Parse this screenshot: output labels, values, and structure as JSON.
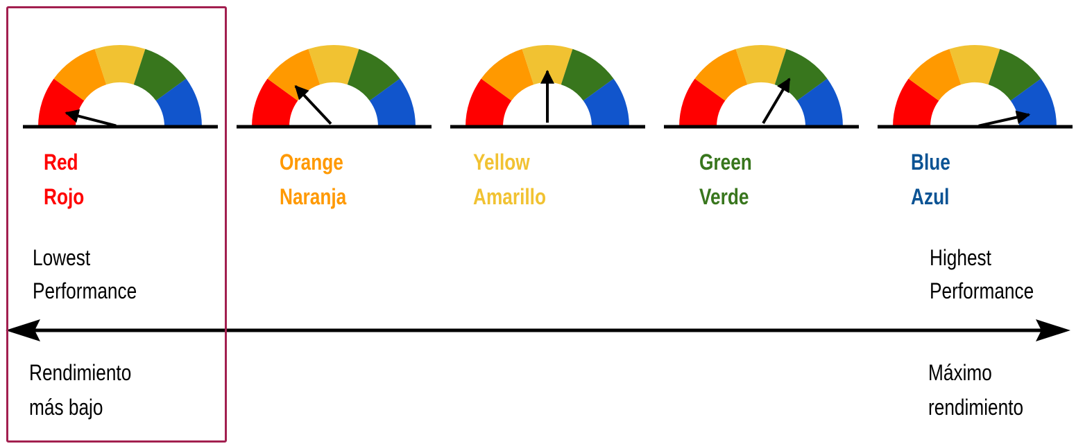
{
  "gauges": [
    {
      "name_en": "Red",
      "name_es": "Rojo",
      "color": "#ff0000",
      "needle_fraction": 0.08
    },
    {
      "name_en": "Orange",
      "name_es": "Naranja",
      "color": "#ff9900",
      "needle_fraction": 0.26
    },
    {
      "name_en": "Yellow",
      "name_es": "Amarillo",
      "color": "#f1c232",
      "needle_fraction": 0.5
    },
    {
      "name_en": "Green",
      "name_es": "Verde",
      "color": "#38761d",
      "needle_fraction": 0.67
    },
    {
      "name_en": "Blue",
      "name_es": "Azul",
      "color": "#0b5394",
      "needle_fraction": 0.93
    }
  ],
  "dial_segment_colors": [
    "#ff0000",
    "#ff9900",
    "#f1c232",
    "#38761d",
    "#1155cc"
  ],
  "scale": {
    "low": {
      "en": "Lowest Performance",
      "en_line1": "Lowest",
      "en_line2": "Performance",
      "es_line1": "Rendimiento",
      "es_line2": "más bajo"
    },
    "high": {
      "en": "Highest Performance",
      "en_line1": "Highest",
      "en_line2": "Performance",
      "es_line1": "Máximo",
      "es_line2": "rendimiento"
    }
  },
  "highlight_color": "#a21f4f"
}
